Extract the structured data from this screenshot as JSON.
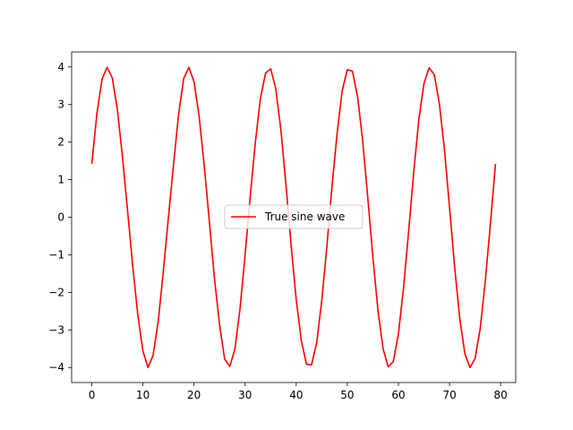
{
  "chart_data": {
    "type": "line",
    "title": "",
    "xlabel": "",
    "ylabel": "",
    "xlim": [
      -3.95,
      82.95
    ],
    "ylim": [
      -4.4,
      4.4
    ],
    "x_ticks": [
      0,
      10,
      20,
      30,
      40,
      50,
      60,
      70,
      80
    ],
    "x_tick_labels": [
      "0",
      "10",
      "20",
      "30",
      "40",
      "50",
      "60",
      "70",
      "80"
    ],
    "y_ticks": [
      -4,
      -3,
      -2,
      -1,
      0,
      1,
      2,
      3,
      4
    ],
    "y_tick_labels": [
      "−4",
      "−3",
      "−2",
      "−1",
      "0",
      "1",
      "2",
      "3",
      "4"
    ],
    "grid": false,
    "legend": {
      "placement": "center",
      "entries": [
        "True sine wave"
      ]
    },
    "series": [
      {
        "name": "True sine wave",
        "color": "#ff0000",
        "x": [
          0,
          1,
          2,
          3,
          4,
          5,
          6,
          7,
          8,
          9,
          10,
          11,
          12,
          13,
          14,
          15,
          16,
          17,
          18,
          19,
          20,
          21,
          22,
          23,
          24,
          25,
          26,
          27,
          28,
          29,
          30,
          31,
          32,
          33,
          34,
          35,
          36,
          37,
          38,
          39,
          40,
          41,
          42,
          43,
          44,
          45,
          46,
          47,
          48,
          49,
          50,
          51,
          52,
          53,
          54,
          55,
          56,
          57,
          58,
          59,
          60,
          61,
          62,
          63,
          64,
          65,
          66,
          67,
          68,
          69,
          70,
          71,
          72,
          73,
          74,
          75,
          76,
          77,
          78,
          79
        ],
        "values": [
          1.42,
          2.76,
          3.68,
          3.99,
          3.71,
          2.87,
          1.61,
          0.17,
          -1.29,
          -2.6,
          -3.56,
          -4.0,
          -3.67,
          -2.77,
          -1.43,
          0.0,
          1.42,
          2.76,
          3.7,
          3.99,
          3.61,
          2.69,
          1.37,
          -0.11,
          -1.63,
          -2.86,
          -3.78,
          -3.97,
          -3.51,
          -2.44,
          -1.0,
          0.56,
          1.99,
          3.17,
          3.84,
          3.95,
          3.42,
          2.33,
          0.85,
          -0.75,
          -2.19,
          -3.29,
          -3.91,
          -3.93,
          -3.34,
          -2.22,
          -0.77,
          0.82,
          2.23,
          3.37,
          3.93,
          3.89,
          3.22,
          2.05,
          0.53,
          -1.06,
          -2.48,
          -3.5,
          -3.98,
          -3.84,
          -3.1,
          -1.88,
          -0.38,
          1.21,
          2.61,
          3.56,
          3.98,
          3.8,
          3.04,
          1.81,
          0.26,
          -1.32,
          -2.69,
          -3.63,
          -4.0,
          -3.76,
          -2.97,
          -1.7,
          -0.17,
          1.42
        ]
      }
    ]
  }
}
